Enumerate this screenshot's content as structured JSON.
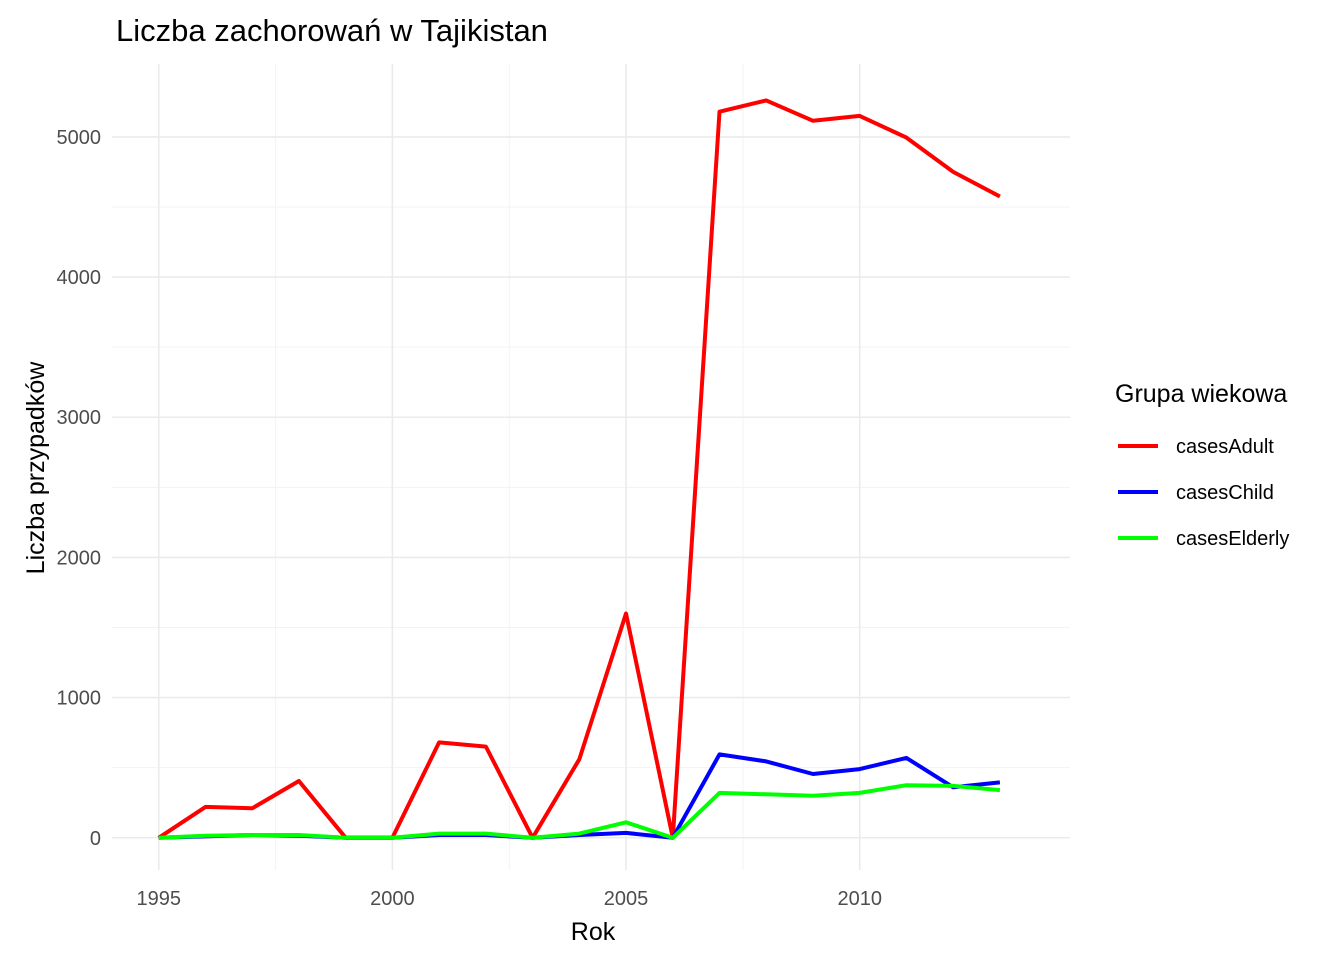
{
  "chart_data": {
    "type": "line",
    "title": "Liczba zachorowań w Tajikistan",
    "xlabel": "Rok",
    "ylabel": "Liczba przypadków",
    "x": [
      1995,
      1996,
      1997,
      1998,
      1999,
      2000,
      2001,
      2002,
      2003,
      2004,
      2005,
      2006,
      2007,
      2008,
      2009,
      2010,
      2011,
      2012,
      2013
    ],
    "xlim": [
      1994,
      2014.5
    ],
    "ylim": [
      -230,
      5520
    ],
    "x_ticks": [
      1995,
      2000,
      2005,
      2010
    ],
    "x_tick_labels": [
      "1995",
      "2000",
      "2005",
      "2010"
    ],
    "y_ticks": [
      0,
      1000,
      2000,
      3000,
      4000,
      5000
    ],
    "y_tick_labels": [
      "0",
      "1000",
      "2000",
      "3000",
      "4000",
      "5000"
    ],
    "grid": true,
    "legend": {
      "title": "Grupa wiekowa",
      "position": "right"
    },
    "series": [
      {
        "name": "casesAdult",
        "color": "#ff0000",
        "values": [
          0,
          220,
          210,
          405,
          0,
          0,
          680,
          650,
          0,
          560,
          1600,
          0,
          5180,
          5260,
          5115,
          5150,
          4995,
          4750,
          4575
        ]
      },
      {
        "name": "casesChild",
        "color": "#0000ff",
        "values": [
          0,
          10,
          20,
          15,
          0,
          0,
          20,
          20,
          0,
          20,
          35,
          0,
          595,
          545,
          455,
          490,
          570,
          360,
          395
        ]
      },
      {
        "name": "casesElderly",
        "color": "#00ff00",
        "values": [
          0,
          15,
          20,
          20,
          0,
          0,
          30,
          30,
          0,
          30,
          110,
          0,
          320,
          310,
          300,
          320,
          375,
          370,
          340
        ]
      }
    ]
  }
}
